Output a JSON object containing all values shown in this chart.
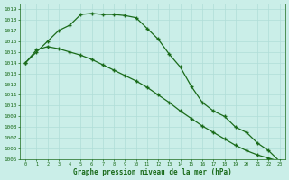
{
  "x": [
    0,
    1,
    2,
    3,
    4,
    5,
    6,
    7,
    8,
    9,
    10,
    11,
    12,
    13,
    14,
    15,
    16,
    17,
    18,
    19,
    20,
    21,
    22,
    23
  ],
  "line_upper": [
    1014.0,
    1015.0,
    1016.0,
    1017.0,
    1017.5,
    1018.5,
    1018.6,
    1018.5,
    1018.5,
    1018.4,
    1018.2,
    1017.2,
    1016.2,
    1014.8,
    1013.6,
    1011.8,
    1010.3,
    1009.5,
    1009.0,
    1008.0,
    1007.5,
    1006.5,
    1005.8,
    1004.8
  ],
  "line_lower": [
    1014.0,
    1015.2,
    1015.5,
    1015.3,
    1015.0,
    1014.7,
    1014.3,
    1013.8,
    1013.3,
    1012.8,
    1012.3,
    1011.7,
    1011.0,
    1010.3,
    1009.5,
    1008.8,
    1008.1,
    1007.5,
    1006.9,
    1006.3,
    1005.8,
    1005.4,
    1005.1,
    1004.8
  ],
  "line_color": "#1a6b1a",
  "bg_color": "#caeee8",
  "grid_color": "#b0ddd8",
  "xlabel": "Graphe pression niveau de la mer (hPa)",
  "ymin": 1005,
  "ymax": 1019
}
